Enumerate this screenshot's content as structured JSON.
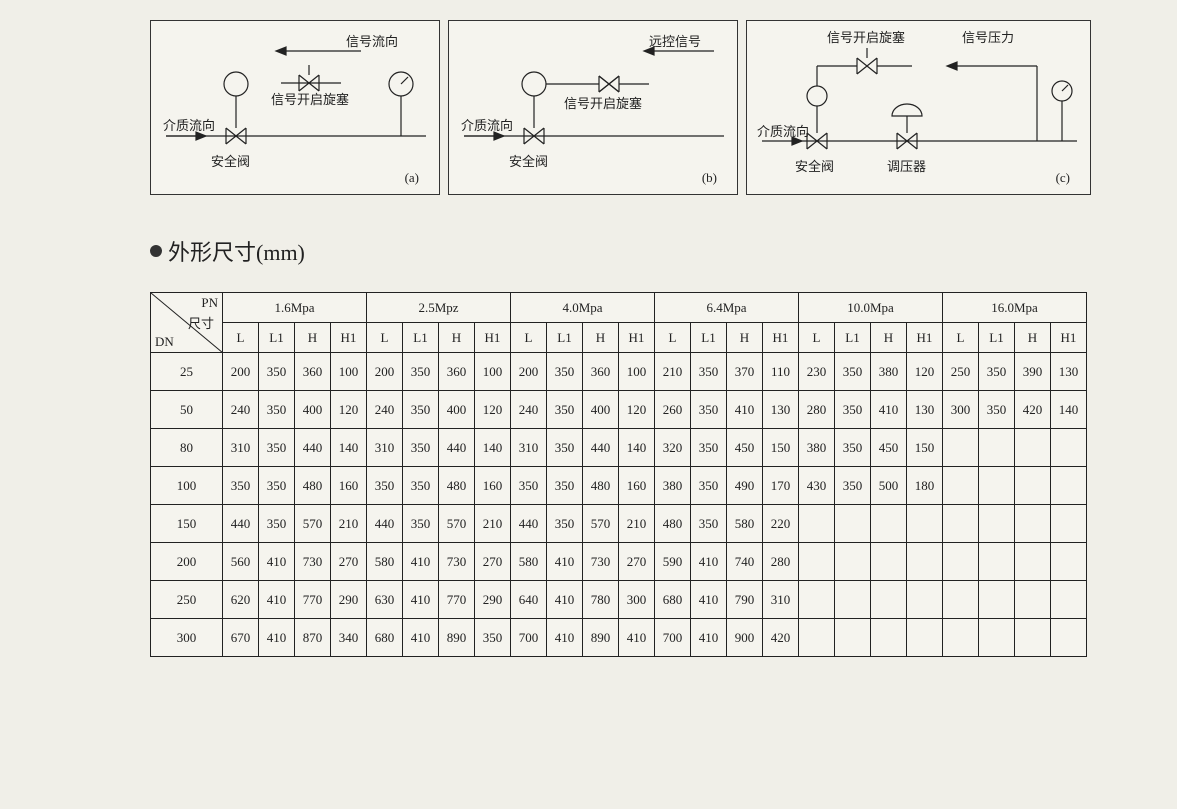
{
  "diagrams": {
    "a": {
      "signal_flow": "信号流向",
      "medium_flow": "介质流向",
      "signal_valve": "信号开启旋塞",
      "safety_valve": "安全阀",
      "tag": "(a)"
    },
    "b": {
      "remote_signal": "远控信号",
      "medium_flow": "介质流向",
      "signal_valve": "信号开启旋塞",
      "safety_valve": "安全阀",
      "tag": "(b)"
    },
    "c": {
      "signal_valve": "信号开启旋塞",
      "signal_pressure": "信号压力",
      "medium_flow": "介质流向",
      "safety_valve": "安全阀",
      "regulator": "调压器",
      "tag": "(c)"
    }
  },
  "section_title": "外形尺寸(mm)",
  "table": {
    "corner": {
      "pn": "PN",
      "size": "尺寸",
      "dn": "DN"
    },
    "pressure_heads": [
      "1.6Mpa",
      "2.5Mpz",
      "4.0Mpa",
      "6.4Mpa",
      "10.0Mpa",
      "16.0Mpa"
    ],
    "sub_heads": [
      "L",
      "L1",
      "H",
      "H1"
    ],
    "dn": [
      "25",
      "50",
      "80",
      "100",
      "150",
      "200",
      "250",
      "300"
    ],
    "rows": [
      [
        "200",
        "350",
        "360",
        "100",
        "200",
        "350",
        "360",
        "100",
        "200",
        "350",
        "360",
        "100",
        "210",
        "350",
        "370",
        "110",
        "230",
        "350",
        "380",
        "120",
        "250",
        "350",
        "390",
        "130"
      ],
      [
        "240",
        "350",
        "400",
        "120",
        "240",
        "350",
        "400",
        "120",
        "240",
        "350",
        "400",
        "120",
        "260",
        "350",
        "410",
        "130",
        "280",
        "350",
        "410",
        "130",
        "300",
        "350",
        "420",
        "140"
      ],
      [
        "310",
        "350",
        "440",
        "140",
        "310",
        "350",
        "440",
        "140",
        "310",
        "350",
        "440",
        "140",
        "320",
        "350",
        "450",
        "150",
        "380",
        "350",
        "450",
        "150",
        "",
        "",
        "",
        ""
      ],
      [
        "350",
        "350",
        "480",
        "160",
        "350",
        "350",
        "480",
        "160",
        "350",
        "350",
        "480",
        "160",
        "380",
        "350",
        "490",
        "170",
        "430",
        "350",
        "500",
        "180",
        "",
        "",
        "",
        ""
      ],
      [
        "440",
        "350",
        "570",
        "210",
        "440",
        "350",
        "570",
        "210",
        "440",
        "350",
        "570",
        "210",
        "480",
        "350",
        "580",
        "220",
        "",
        "",
        "",
        "",
        "",
        "",
        "",
        ""
      ],
      [
        "560",
        "410",
        "730",
        "270",
        "580",
        "410",
        "730",
        "270",
        "580",
        "410",
        "730",
        "270",
        "590",
        "410",
        "740",
        "280",
        "",
        "",
        "",
        "",
        "",
        "",
        "",
        ""
      ],
      [
        "620",
        "410",
        "770",
        "290",
        "630",
        "410",
        "770",
        "290",
        "640",
        "410",
        "780",
        "300",
        "680",
        "410",
        "790",
        "310",
        "",
        "",
        "",
        "",
        "",
        "",
        "",
        ""
      ],
      [
        "670",
        "410",
        "870",
        "340",
        "680",
        "410",
        "890",
        "350",
        "700",
        "410",
        "890",
        "410",
        "700",
        "410",
        "900",
        "420",
        "",
        "",
        "",
        "",
        "",
        "",
        "",
        ""
      ]
    ]
  },
  "style": {
    "stroke": "#222",
    "stroke_width": 1.2
  }
}
